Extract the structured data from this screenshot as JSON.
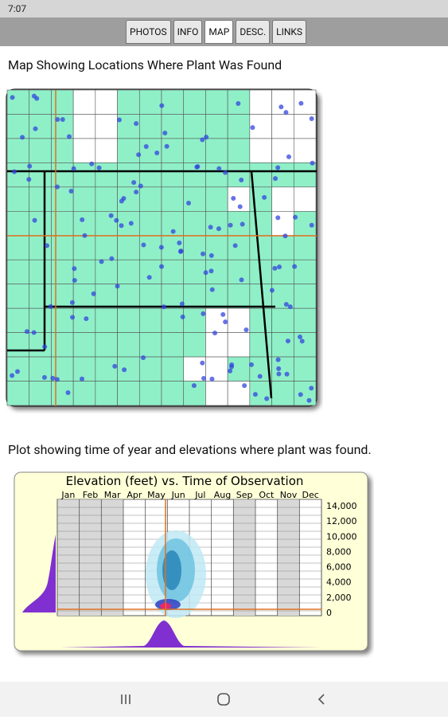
{
  "status_bar": {
    "time": "7:07"
  },
  "tabs": [
    "PHOTOS",
    "INFO",
    "MAP",
    "DESC.",
    "LINKS"
  ],
  "map": {
    "caption": "Map Showing Locations Where Plant Was Found"
  },
  "plot": {
    "caption": "Plot showing time of year and elevations where plant was found.",
    "title": "Elevation (feet) vs. Time of Observation",
    "months": [
      "Jan",
      "Feb",
      "Mar",
      "Apr",
      "May",
      "Jun",
      "Jul",
      "Aug",
      "Sep",
      "Oct",
      "Nov",
      "Dec"
    ],
    "elevation_ticks": [
      {
        "value": 14000,
        "label": "14,000"
      },
      {
        "value": 12000,
        "label": "12,000"
      },
      {
        "value": 10000,
        "label": "10,000"
      },
      {
        "value": 8000,
        "label": "8,000"
      },
      {
        "value": 6000,
        "label": "6,000"
      },
      {
        "value": 4000,
        "label": "4,000"
      },
      {
        "value": 2000,
        "label": "2,000"
      },
      0
    ]
  }
}
